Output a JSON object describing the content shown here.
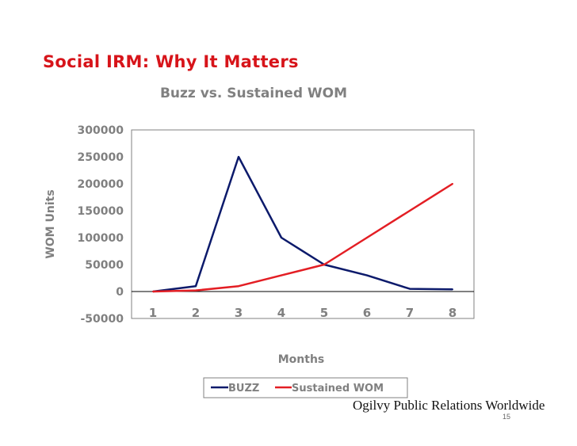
{
  "slide": {
    "title": "Social IRM: Why It Matters",
    "brand": "Ogilvy Public Relations Worldwide",
    "page_number": "15"
  },
  "colors": {
    "title_red": "#d7141a",
    "buzz": "#0c1a6b",
    "sustained": "#e31e24",
    "axis_text": "#808080"
  },
  "chart_data": {
    "type": "line",
    "title": "Buzz vs. Sustained WOM",
    "xlabel": "Months",
    "ylabel": "WOM Units",
    "categories": [
      "1",
      "2",
      "3",
      "4",
      "5",
      "6",
      "7",
      "8"
    ],
    "y_ticks": [
      "300000",
      "250000",
      "200000",
      "150000",
      "100000",
      "50000",
      "0",
      "-50000"
    ],
    "ylim": [
      -50000,
      300000
    ],
    "grid": false,
    "legend_position": "bottom",
    "series": [
      {
        "name": "BUZZ",
        "values": [
          0,
          10000,
          250000,
          100000,
          50000,
          30000,
          5000,
          4000
        ]
      },
      {
        "name": "Sustained WOM",
        "values": [
          0,
          2000,
          10000,
          30000,
          50000,
          100000,
          150000,
          200000
        ]
      }
    ]
  }
}
